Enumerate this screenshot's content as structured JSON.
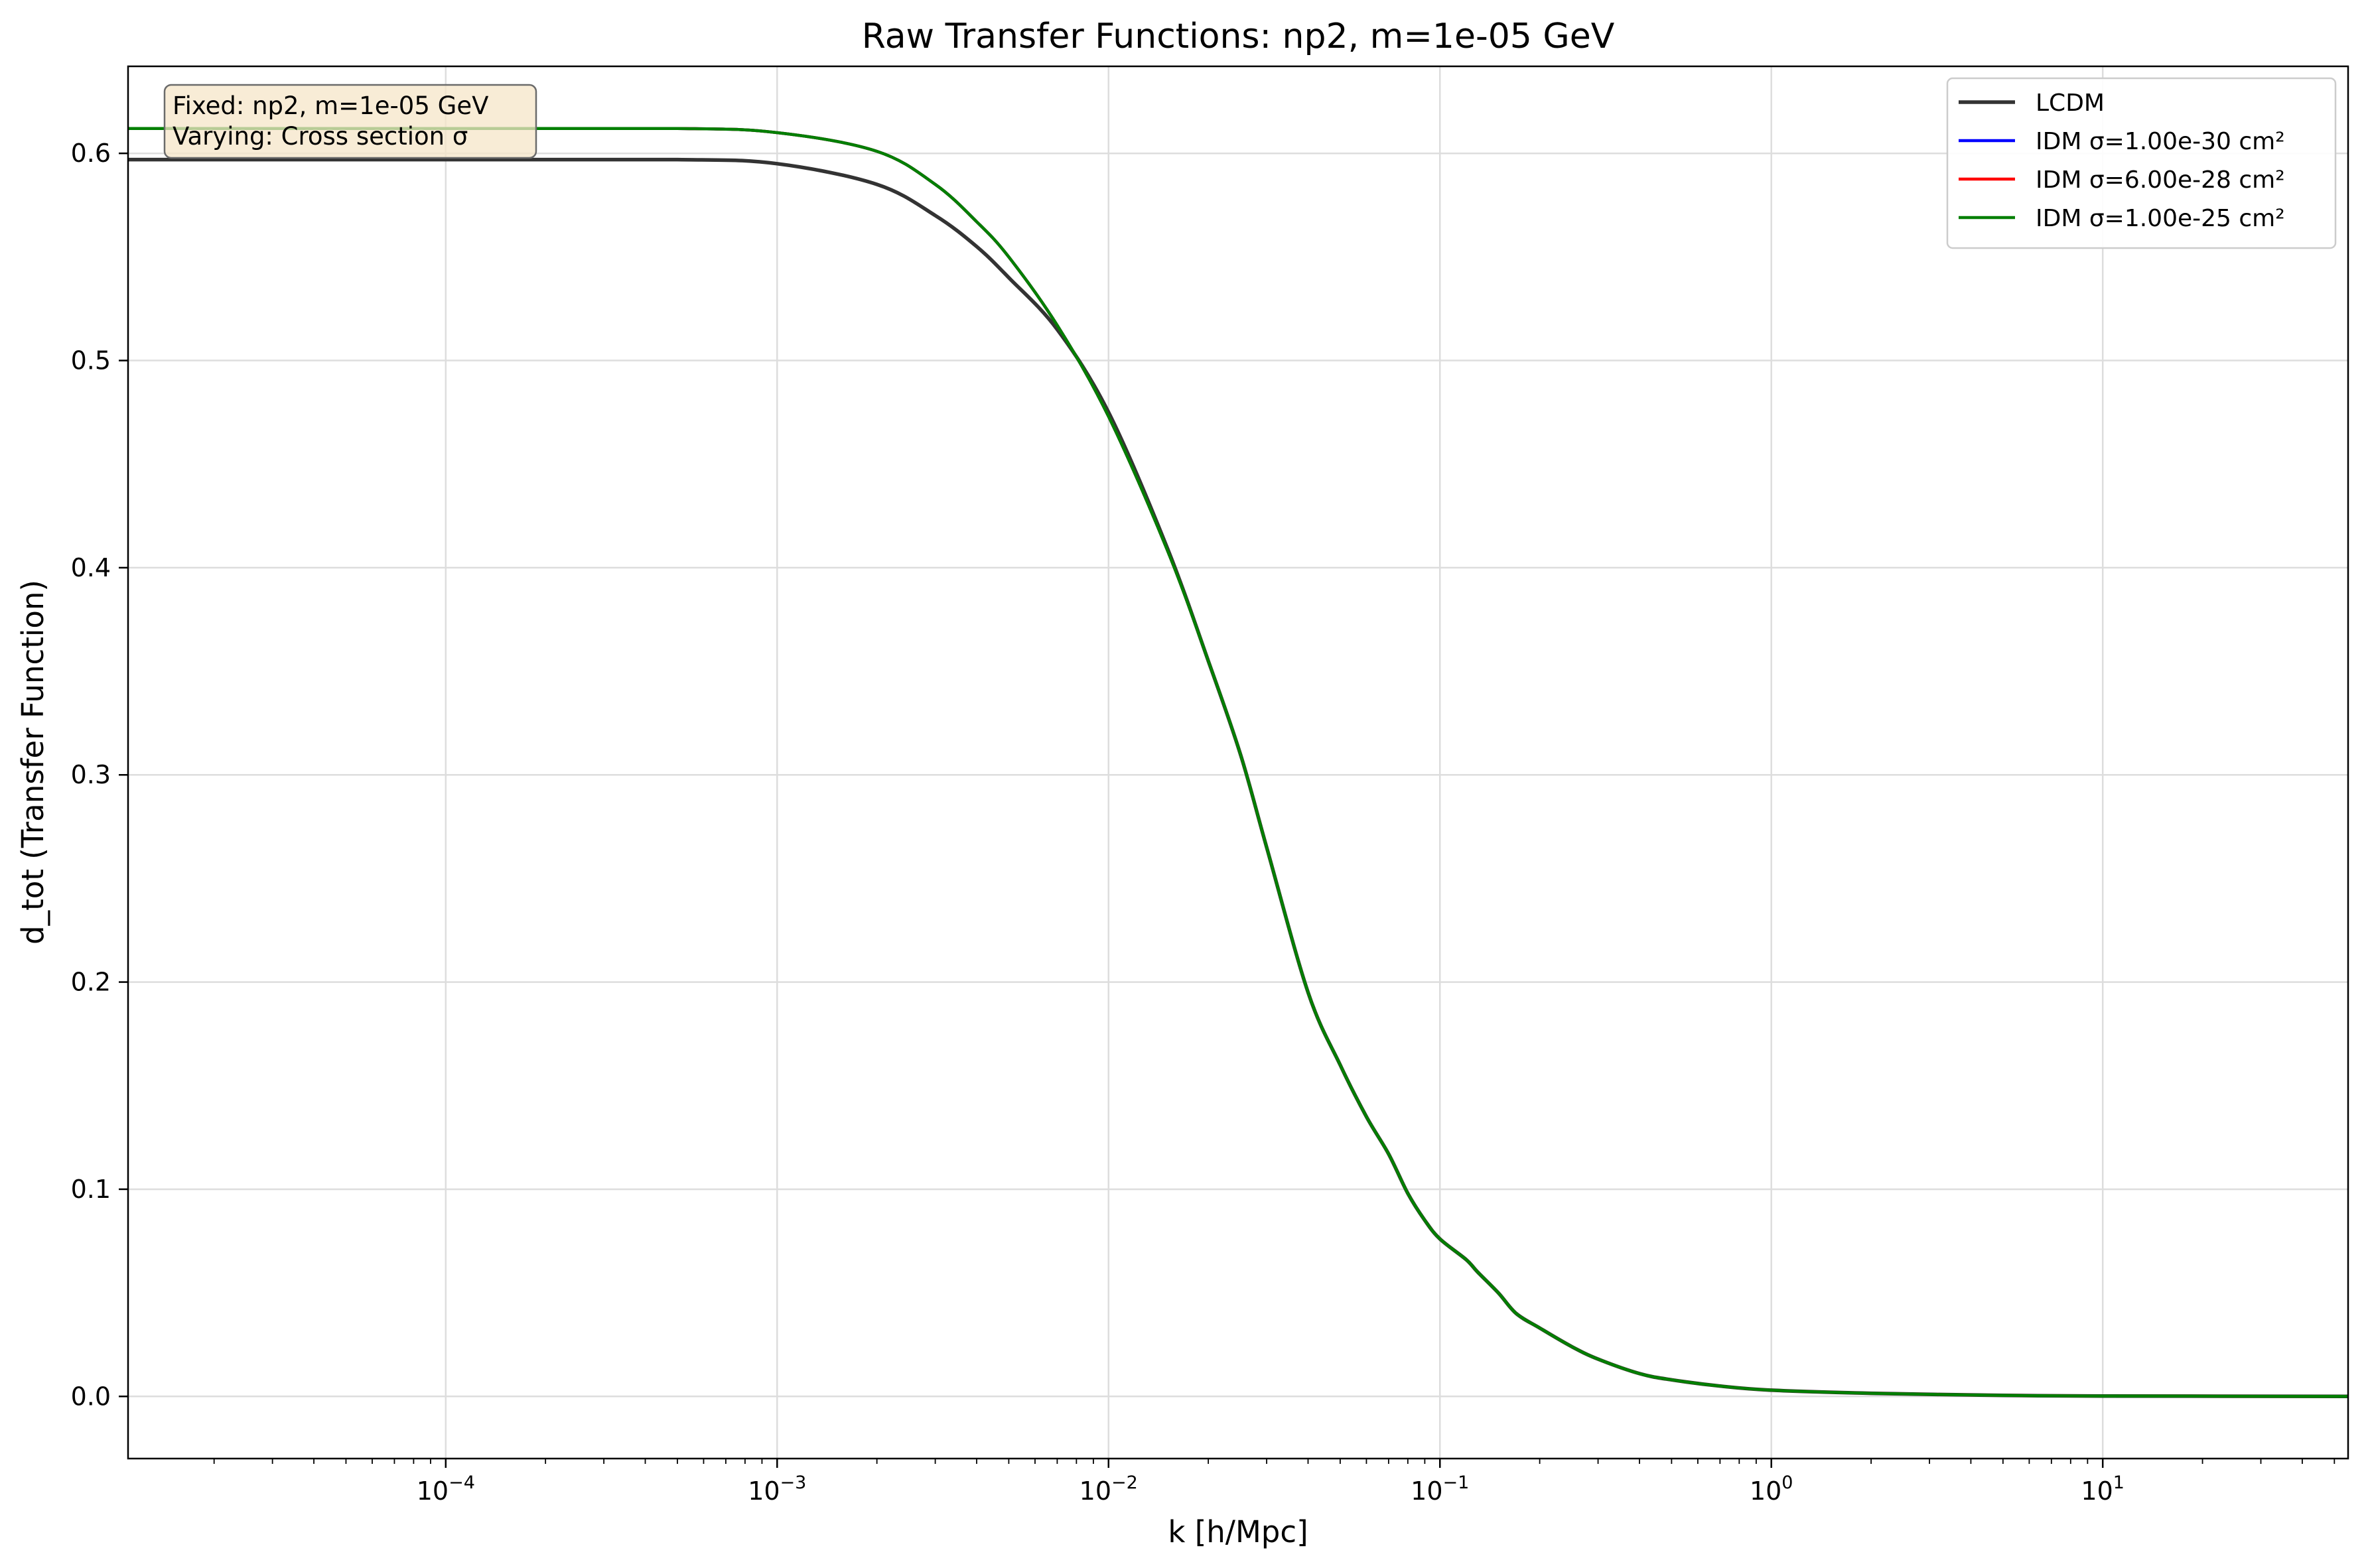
{
  "chart_data": {
    "type": "line",
    "title": "Raw Transfer Functions: np2, m=1e-05 GeV",
    "xlabel": "k [h/Mpc]",
    "ylabel": "d_tot (Transfer Function)",
    "xscale": "log",
    "xlim": [
      1.1e-05,
      55
    ],
    "ylim": [
      -0.03,
      0.642
    ],
    "grid": true,
    "legend_position": "top-right",
    "x_ticks": [
      {
        "base": "10",
        "exp": "−4",
        "value": 0.0001
      },
      {
        "base": "10",
        "exp": "−3",
        "value": 0.001
      },
      {
        "base": "10",
        "exp": "−2",
        "value": 0.01
      },
      {
        "base": "10",
        "exp": "−1",
        "value": 0.1
      },
      {
        "base": "10",
        "exp": "0",
        "value": 1
      },
      {
        "base": "10",
        "exp": "1",
        "value": 10
      }
    ],
    "y_ticks": [
      {
        "label": "0.0",
        "value": 0.0
      },
      {
        "label": "0.1",
        "value": 0.1
      },
      {
        "label": "0.2",
        "value": 0.2
      },
      {
        "label": "0.3",
        "value": 0.3
      },
      {
        "label": "0.4",
        "value": 0.4
      },
      {
        "label": "0.5",
        "value": 0.5
      },
      {
        "label": "0.6",
        "value": 0.6
      }
    ],
    "annotation": [
      "Fixed: np2, m=1e-05 GeV",
      "Varying: Cross section σ"
    ],
    "series": [
      {
        "name": "LCDM",
        "color": "#333333",
        "x": [
          1.1e-05,
          0.0001,
          0.0005,
          0.001,
          0.002,
          0.003,
          0.004,
          0.005,
          0.007,
          0.01,
          0.015,
          0.02,
          0.025,
          0.03,
          0.04,
          0.05,
          0.06,
          0.07,
          0.08,
          0.09,
          0.1,
          0.12,
          0.13,
          0.15,
          0.17,
          0.2,
          0.25,
          0.3,
          0.4,
          0.5,
          0.7,
          1.0,
          2.0,
          5.0,
          10.0,
          55.0
        ],
        "y": [
          0.597,
          0.597,
          0.597,
          0.595,
          0.585,
          0.57,
          0.555,
          0.54,
          0.515,
          0.475,
          0.41,
          0.355,
          0.31,
          0.265,
          0.195,
          0.16,
          0.135,
          0.117,
          0.098,
          0.085,
          0.076,
          0.066,
          0.06,
          0.05,
          0.04,
          0.033,
          0.024,
          0.018,
          0.011,
          0.008,
          0.005,
          0.003,
          0.0015,
          0.0005,
          0.0002,
          0.0
        ]
      },
      {
        "name": "IDM σ=1.00e-30 cm²",
        "color": "#0000ff",
        "x": [
          1.1e-05,
          0.0001,
          0.0005,
          0.001,
          0.002,
          0.003,
          0.004,
          0.005,
          0.007,
          0.01,
          0.015,
          0.02,
          0.025,
          0.03,
          0.04,
          0.05,
          0.06,
          0.07,
          0.08,
          0.09,
          0.1,
          0.12,
          0.13,
          0.15,
          0.17,
          0.2,
          0.25,
          0.3,
          0.4,
          0.5,
          0.7,
          1.0,
          2.0,
          5.0,
          10.0,
          55.0
        ],
        "y": [
          0.612,
          0.612,
          0.612,
          0.61,
          0.601,
          0.585,
          0.567,
          0.55,
          0.517,
          0.473,
          0.409,
          0.355,
          0.31,
          0.265,
          0.195,
          0.16,
          0.135,
          0.117,
          0.098,
          0.085,
          0.076,
          0.066,
          0.06,
          0.05,
          0.04,
          0.033,
          0.024,
          0.018,
          0.011,
          0.008,
          0.005,
          0.003,
          0.0015,
          0.0005,
          0.0002,
          0.0
        ]
      },
      {
        "name": "IDM σ=6.00e-28 cm²",
        "color": "#ff0000",
        "x": [
          1.1e-05,
          0.0001,
          0.0005,
          0.001,
          0.002,
          0.003,
          0.004,
          0.005,
          0.007,
          0.01,
          0.015,
          0.02,
          0.025,
          0.03,
          0.04,
          0.05,
          0.06,
          0.07,
          0.08,
          0.09,
          0.1,
          0.12,
          0.13,
          0.15,
          0.17,
          0.2,
          0.25,
          0.3,
          0.4,
          0.5,
          0.7,
          1.0,
          2.0,
          5.0,
          10.0,
          55.0
        ],
        "y": [
          0.612,
          0.612,
          0.612,
          0.61,
          0.601,
          0.585,
          0.567,
          0.55,
          0.517,
          0.473,
          0.409,
          0.355,
          0.31,
          0.265,
          0.195,
          0.16,
          0.135,
          0.117,
          0.098,
          0.085,
          0.076,
          0.066,
          0.06,
          0.05,
          0.04,
          0.033,
          0.024,
          0.018,
          0.011,
          0.008,
          0.005,
          0.003,
          0.0015,
          0.0005,
          0.0002,
          0.0
        ]
      },
      {
        "name": "IDM σ=1.00e-25 cm²",
        "color": "#007f00",
        "x": [
          1.1e-05,
          0.0001,
          0.0005,
          0.001,
          0.002,
          0.003,
          0.004,
          0.005,
          0.007,
          0.01,
          0.015,
          0.02,
          0.025,
          0.03,
          0.04,
          0.05,
          0.06,
          0.07,
          0.08,
          0.09,
          0.1,
          0.12,
          0.13,
          0.15,
          0.17,
          0.2,
          0.25,
          0.3,
          0.4,
          0.5,
          0.7,
          1.0,
          2.0,
          5.0,
          10.0,
          55.0
        ],
        "y": [
          0.612,
          0.612,
          0.612,
          0.61,
          0.601,
          0.585,
          0.567,
          0.55,
          0.517,
          0.473,
          0.409,
          0.355,
          0.31,
          0.265,
          0.195,
          0.16,
          0.135,
          0.117,
          0.098,
          0.085,
          0.076,
          0.066,
          0.06,
          0.05,
          0.04,
          0.033,
          0.024,
          0.018,
          0.011,
          0.008,
          0.005,
          0.003,
          0.0015,
          0.0005,
          0.0002,
          0.0
        ]
      }
    ]
  }
}
